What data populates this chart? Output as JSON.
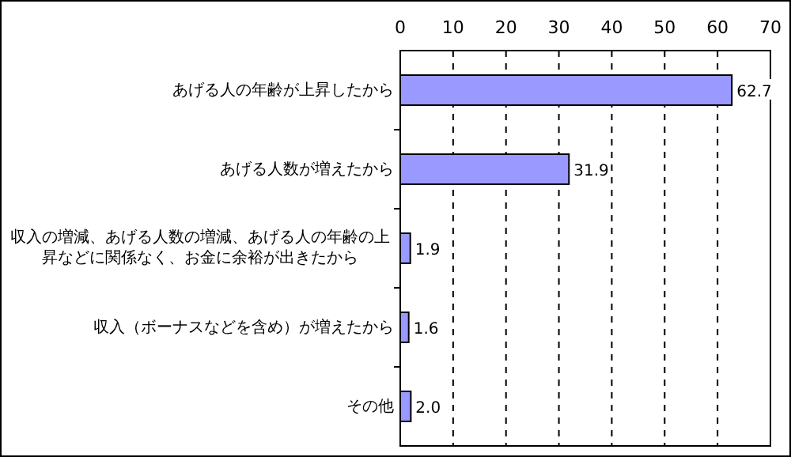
{
  "chart_data": {
    "type": "bar",
    "orientation": "horizontal",
    "categories": [
      "あげる人の年齢が上昇したから",
      "あげる人数が増えたから",
      "収入の増減、あげる人数の増減、あげる人の年齢の上昇などに関係なく、お金に余裕が出きたから",
      "収入（ボーナスなどを含め）が増えたから",
      "その他"
    ],
    "values": [
      62.7,
      31.9,
      1.9,
      1.6,
      2.0
    ],
    "color": "#9999ff",
    "xlim": [
      0,
      70
    ],
    "xticks": [
      0,
      10,
      20,
      30,
      40,
      50,
      60,
      70
    ],
    "value_labels": [
      "62.7",
      "31.9",
      "1.9",
      "1.6",
      "2.0"
    ],
    "grid": "x"
  }
}
